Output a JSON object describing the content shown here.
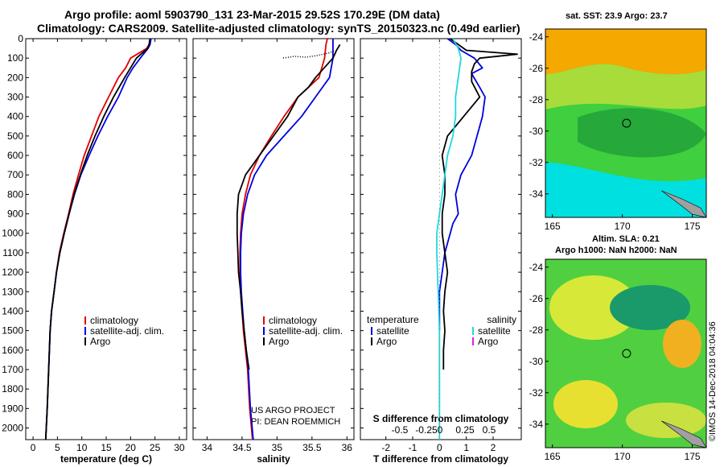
{
  "header": {
    "line1": "Argo profile: aoml 5903790_131 23-Mar-2015 29.52S 170.29E (DM data)",
    "line2": "Climatology: CARS2009. Satellite-adjusted climatology: synTS_20150323.nc (0.49d earlier)"
  },
  "colors": {
    "climatology": "#e00000",
    "satellite": "#0000e0",
    "argo": "#000000",
    "satellite_salinity": "#20d8e0",
    "argo_salinity": "#e020e0"
  },
  "sst_map": {
    "title": "sat. SST: 23.9 Argo: 23.7",
    "x_ticks": [
      "165",
      "170",
      "175"
    ],
    "y_ticks": [
      "-24",
      "-26",
      "-28",
      "-30",
      "-32",
      "-34"
    ],
    "marker": {
      "lon": 170.3,
      "lat": -29.5
    }
  },
  "sla_map": {
    "title1": "Altim. SLA: 0.21",
    "title2": "Argo h1000: NaN h2000: NaN",
    "x_ticks": [
      "165",
      "170",
      "175"
    ],
    "y_ticks": [
      "-24",
      "-26",
      "-28",
      "-30",
      "-32",
      "-34"
    ],
    "marker": {
      "lon": 170.3,
      "lat": -29.5
    }
  },
  "credit": "©IMOS 14-Dec-2018 04:04:36",
  "project": {
    "line1": "US ARGO PROJECT",
    "line2": "PI: DEAN ROEMMICH"
  },
  "chart_data": [
    {
      "type": "line",
      "id": "temperature",
      "xlabel": "temperature (deg C)",
      "xlim": [
        -1.5,
        31.5
      ],
      "x_ticks": [
        0,
        5,
        10,
        15,
        20,
        25,
        30
      ],
      "ylim": [
        2060,
        0
      ],
      "y_ticks": [
        0,
        100,
        200,
        300,
        400,
        500,
        600,
        700,
        800,
        900,
        1000,
        1100,
        1200,
        1300,
        1400,
        1500,
        1600,
        1700,
        1800,
        1900,
        2000
      ],
      "legend": [
        "climatology",
        "satellite-adj. clim.",
        "Argo"
      ],
      "series": [
        {
          "name": "climatology",
          "x": [
            24,
            23.8,
            23.3,
            20,
            19,
            17.5,
            15.5,
            13.5,
            12,
            10.5,
            9.3,
            8.2,
            7.3,
            6.3,
            5.4,
            4.8,
            4.3,
            3.8,
            3.5,
            3.2,
            2.9,
            2.6
          ],
          "y": [
            0,
            30,
            50,
            100,
            150,
            200,
            300,
            400,
            500,
            600,
            700,
            800,
            900,
            1000,
            1100,
            1200,
            1300,
            1400,
            1500,
            1700,
            1900,
            2060
          ]
        },
        {
          "name": "satellite-adj. clim.",
          "x": [
            24.2,
            24,
            23.6,
            22,
            20.5,
            19.3,
            17.5,
            15.3,
            13.3,
            11.5,
            9.8,
            8.5,
            7.4,
            6.4,
            5.5,
            4.8,
            4.3,
            3.8,
            3.5,
            3.2,
            2.9,
            2.6
          ],
          "y": [
            0,
            30,
            50,
            100,
            150,
            200,
            300,
            400,
            500,
            600,
            700,
            800,
            900,
            1000,
            1100,
            1200,
            1300,
            1400,
            1500,
            1700,
            1900,
            2060
          ]
        },
        {
          "name": "Argo",
          "x": [
            24,
            23.8,
            23.5,
            21.2,
            20,
            18.8,
            16.5,
            14.5,
            12.7,
            11.1,
            9.7,
            8.4,
            7.4,
            6.4,
            5.5,
            4.8,
            4.3,
            3.8,
            3.5,
            3.2,
            2.9,
            2.6
          ],
          "y": [
            0,
            30,
            50,
            100,
            150,
            200,
            300,
            400,
            500,
            600,
            700,
            800,
            900,
            1000,
            1100,
            1200,
            1300,
            1400,
            1500,
            1700,
            1900,
            2060
          ]
        }
      ]
    },
    {
      "type": "line",
      "id": "salinity",
      "xlabel": "salinity",
      "xlim": [
        33.8,
        36.1
      ],
      "x_ticks": [
        34,
        34.5,
        35,
        35.5,
        36
      ],
      "ylim": [
        2060,
        0
      ],
      "legend": [
        "climatology",
        "satellite-adj. clim.",
        "Argo"
      ],
      "series": [
        {
          "name": "climatology",
          "x": [
            35.72,
            35.7,
            35.68,
            35.6,
            35.45,
            35.3,
            35.1,
            34.92,
            34.75,
            34.62,
            34.55,
            34.5,
            34.48,
            34.47,
            34.47,
            34.48,
            34.5,
            34.52,
            34.55,
            34.58,
            34.61,
            34.65
          ],
          "y": [
            0,
            30,
            100,
            200,
            250,
            300,
            400,
            500,
            600,
            700,
            800,
            900,
            1000,
            1100,
            1200,
            1300,
            1400,
            1500,
            1600,
            1700,
            1900,
            2060
          ]
        },
        {
          "name": "satellite-adj. clim.",
          "x": [
            35.8,
            35.8,
            35.8,
            35.75,
            35.65,
            35.55,
            35.35,
            35.1,
            34.85,
            34.68,
            34.58,
            34.52,
            34.49,
            34.48,
            34.48,
            34.49,
            34.51,
            34.53,
            34.56,
            34.59,
            34.62,
            34.66
          ],
          "y": [
            0,
            30,
            100,
            200,
            250,
            300,
            400,
            500,
            600,
            700,
            800,
            900,
            1000,
            1100,
            1200,
            1300,
            1400,
            1500,
            1600,
            1700,
            1900,
            2060
          ]
        },
        {
          "name": "Argo",
          "x": [
            35.9,
            35.85,
            35.8,
            35.55,
            35.45,
            35.3,
            35.15,
            34.95,
            34.75,
            34.55,
            34.45,
            34.43,
            34.43,
            34.44,
            34.45,
            34.48,
            34.5,
            34.53,
            34.56,
            34.6
          ],
          "y": [
            30,
            60,
            100,
            200,
            250,
            300,
            400,
            500,
            600,
            700,
            800,
            900,
            1000,
            1100,
            1200,
            1300,
            1400,
            1500,
            1600,
            1700
          ]
        }
      ]
    },
    {
      "type": "line",
      "id": "differences",
      "xlabel": "T difference from climatology",
      "x_ticks": [
        -2,
        -1,
        0,
        1,
        2
      ],
      "xlim": [
        -2.95,
        3.05
      ],
      "secondary_label": "S difference from climatology",
      "secondary_ticks": [
        "-0.5",
        "-0.25",
        "0",
        "0.25",
        "0.5"
      ],
      "ylim": [
        2060,
        0
      ],
      "legend_left_title": "temperature",
      "legend_left": [
        "satellite",
        "Argo"
      ],
      "legend_right_title": "salinity",
      "legend_right": [
        "satellite",
        "Argo"
      ],
      "series": [
        {
          "name": "temperature satellite",
          "x": [
            0.3,
            0.6,
            0.8,
            1.3,
            1.6,
            1.2,
            1.5,
            1.7,
            1.6,
            1.4,
            1.2,
            0.8,
            0.6,
            0.7,
            0.5,
            0.4,
            0.2,
            0.1,
            0,
            0
          ],
          "y": [
            0,
            30,
            60,
            100,
            150,
            180,
            250,
            300,
            400,
            500,
            600,
            700,
            800,
            900,
            950,
            1000,
            1100,
            1200,
            1300,
            1500
          ]
        },
        {
          "name": "temperature Argo",
          "x": [
            0.4,
            1,
            2.9,
            1.5,
            1.3,
            1.2,
            1.2,
            1.5,
            0.9,
            0.3,
            0.1,
            0.2,
            0.2,
            0.1,
            0.1,
            0.2,
            0.3,
            0.2,
            0.15,
            0.2,
            0.15,
            0.15
          ],
          "y": [
            0,
            60,
            80,
            100,
            130,
            170,
            220,
            300,
            400,
            500,
            600,
            700,
            800,
            900,
            1000,
            1100,
            1200,
            1300,
            1400,
            1500,
            1600,
            1700
          ]
        },
        {
          "name": "salinity satellite",
          "x": [
            0.5,
            0.7,
            0.8,
            0.7,
            0.6,
            0.6,
            0.5,
            0.3,
            0.2,
            0.1,
            0,
            -0.1,
            -0.1,
            -0.05,
            0,
            0,
            0
          ],
          "y": [
            0,
            50,
            100,
            200,
            300,
            400,
            500,
            600,
            700,
            800,
            900,
            1000,
            1100,
            1300,
            1500,
            1700,
            2060
          ]
        }
      ]
    }
  ]
}
